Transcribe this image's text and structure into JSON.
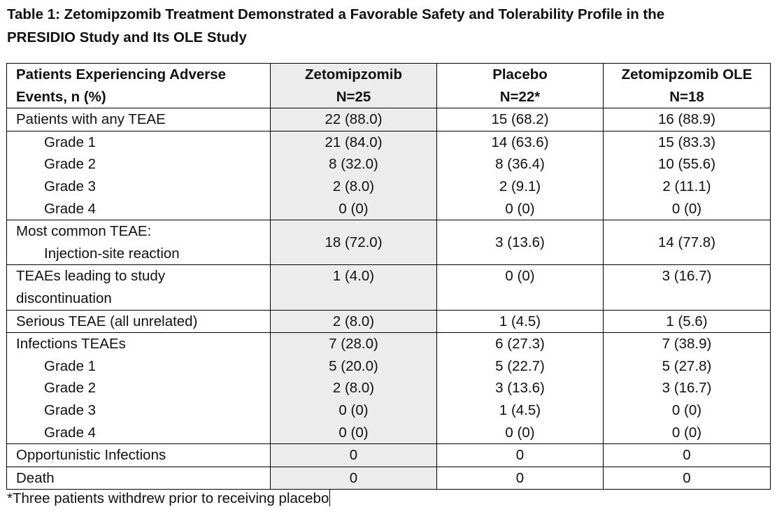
{
  "title": {
    "line1": "Table 1: Zetomipzomib Treatment Demonstrated a Favorable Safety and Tolerability Profile in the",
    "line2": "PRESIDIO Study and Its OLE Study"
  },
  "table": {
    "header": {
      "col0_line1": "Patients Experiencing Adverse",
      "col0_line2": "Events, n (%)",
      "col1_line1": "Zetomipzomib",
      "col1_line2": "N=25",
      "col2_line1": "Placebo",
      "col2_line2": "N=22*",
      "col3_line1": "Zetomipzomib OLE",
      "col3_line2": "N=18"
    },
    "rows": {
      "any_teae": {
        "label": "Patients with any TEAE",
        "v1": "22 (88.0)",
        "v2": "15 (68.2)",
        "v3": "16 (88.9)"
      },
      "teae_g1": {
        "label": "Grade 1",
        "v1": "21 (84.0)",
        "v2": "14 (63.6)",
        "v3": "15 (83.3)"
      },
      "teae_g2": {
        "label": "Grade 2",
        "v1": "8 (32.0)",
        "v2": "8 (36.4)",
        "v3": "10 (55.6)"
      },
      "teae_g3": {
        "label": "Grade 3",
        "v1": "2 (8.0)",
        "v2": "2 (9.1)",
        "v3": "2 (11.1)"
      },
      "teae_g4": {
        "label": "Grade 4",
        "v1": "0 (0)",
        "v2": "0 (0)",
        "v3": "0 (0)"
      },
      "most_common": {
        "label_line1": "Most common TEAE:",
        "label_line2": "Injection-site reaction",
        "v1": "18 (72.0)",
        "v2": "3 (13.6)",
        "v3": "14 (77.8)"
      },
      "discontinuation": {
        "label_line1": "TEAEs leading to study",
        "label_line2": "discontinuation",
        "v1": "1 (4.0)",
        "v2": "0 (0)",
        "v3": "3 (16.7)"
      },
      "serious": {
        "label": "Serious TEAE (all unrelated)",
        "v1": "2 (8.0)",
        "v2": "1 (4.5)",
        "v3": "1 (5.6)"
      },
      "infections": {
        "label": "Infections TEAEs",
        "v1": "7 (28.0)",
        "v2": "6 (27.3)",
        "v3": "7 (38.9)"
      },
      "inf_g1": {
        "label": "Grade 1",
        "v1": "5 (20.0)",
        "v2": "5 (22.7)",
        "v3": "5 (27.8)"
      },
      "inf_g2": {
        "label": "Grade 2",
        "v1": "2 (8.0)",
        "v2": "3 (13.6)",
        "v3": "3 (16.7)"
      },
      "inf_g3": {
        "label": "Grade 3",
        "v1": "0 (0)",
        "v2": "1 (4.5)",
        "v3": "0 (0)"
      },
      "inf_g4": {
        "label": "Grade 4",
        "v1": "0 (0)",
        "v2": "0 (0)",
        "v3": "0 (0)"
      },
      "opportunistic": {
        "label": "Opportunistic Infections",
        "v1": "0",
        "v2": "0",
        "v3": "0"
      },
      "death": {
        "label": "Death",
        "v1": "0",
        "v2": "0",
        "v3": "0"
      }
    }
  },
  "footnote": "*Three patients withdrew prior to receiving placebo",
  "colors": {
    "shaded_column": "#ececec",
    "border": "#000000"
  }
}
